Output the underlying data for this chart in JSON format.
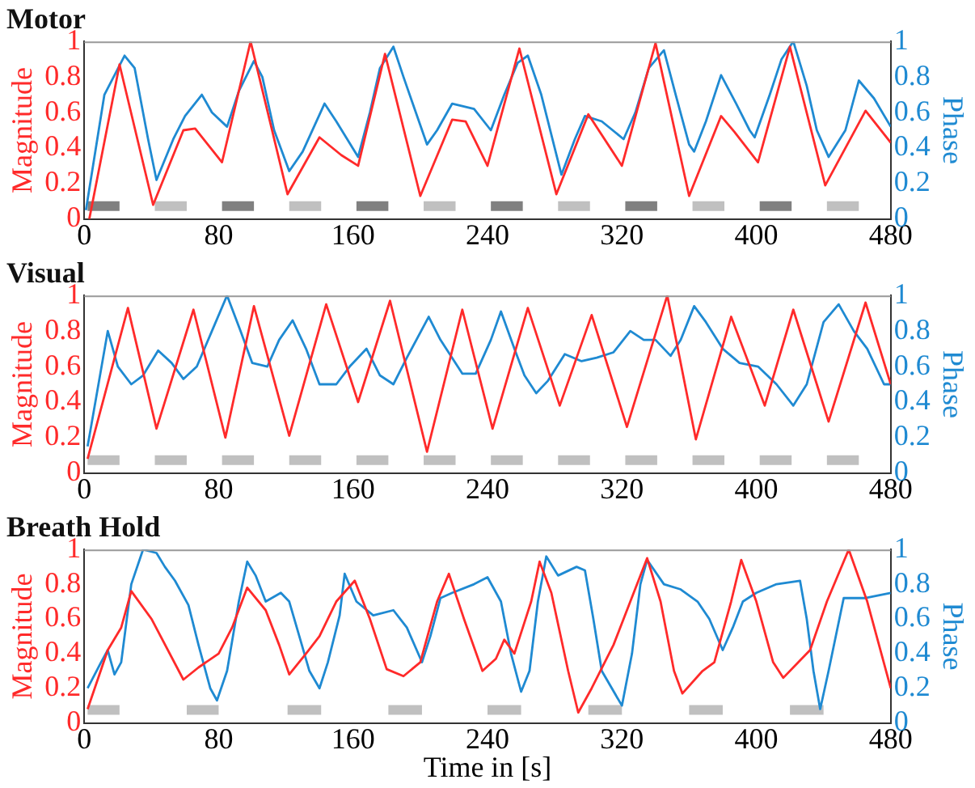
{
  "chart_data": [
    {
      "type": "line",
      "title": "Motor",
      "ylabel": "Magnitude",
      "y2label": "Phase",
      "xlim": [
        0,
        480
      ],
      "xticks": [
        0,
        80,
        160,
        240,
        320,
        400,
        480
      ],
      "ylim": [
        0,
        1
      ],
      "yticks": [
        0,
        0.2,
        0.4,
        0.6,
        0.8,
        1
      ],
      "y2lim": [
        0,
        1
      ],
      "y2ticks": [
        0,
        0.2,
        0.4,
        0.6,
        0.8,
        1
      ],
      "grid": false,
      "legend": false,
      "marker": "none",
      "series": [
        {
          "name": null,
          "color": "#ff2a2a",
          "x": [
            3,
            21,
            41,
            59,
            66,
            82,
            99,
            121,
            140,
            153,
            163,
            179,
            200,
            219,
            227,
            240,
            259,
            281,
            300,
            320,
            340,
            360,
            379,
            387,
            401,
            420,
            441,
            465,
            480
          ],
          "values": [
            0,
            0.87,
            0.08,
            0.5,
            0.51,
            0.32,
            1.0,
            0.14,
            0.46,
            0.36,
            0.3,
            0.93,
            0.13,
            0.56,
            0.55,
            0.3,
            0.96,
            0.14,
            0.59,
            0.3,
            0.99,
            0.13,
            0.58,
            0.49,
            0.32,
            0.97,
            0.19,
            0.61,
            0.43
          ]
        },
        {
          "name": null,
          "color": "#1f8ad2",
          "axis": "y2",
          "x": [
            1,
            12,
            24,
            30,
            38,
            43,
            53,
            60,
            70,
            76,
            85,
            92,
            101,
            106,
            113,
            122,
            130,
            143,
            150,
            163,
            170,
            176,
            184,
            190,
            204,
            210,
            219,
            232,
            242,
            250,
            258,
            264,
            272,
            284,
            292,
            298,
            308,
            321,
            328,
            336,
            345,
            352,
            360,
            363,
            370,
            379,
            388,
            396,
            399,
            408,
            415,
            422,
            430,
            436,
            443,
            453,
            461,
            470,
            480
          ],
          "values": [
            0.05,
            0.7,
            0.92,
            0.85,
            0.45,
            0.22,
            0.45,
            0.58,
            0.7,
            0.6,
            0.52,
            0.72,
            0.89,
            0.8,
            0.5,
            0.27,
            0.38,
            0.65,
            0.55,
            0.35,
            0.6,
            0.85,
            0.97,
            0.8,
            0.42,
            0.5,
            0.65,
            0.62,
            0.5,
            0.7,
            0.88,
            0.92,
            0.7,
            0.25,
            0.45,
            0.58,
            0.55,
            0.45,
            0.6,
            0.85,
            0.95,
            0.7,
            0.42,
            0.38,
            0.55,
            0.81,
            0.65,
            0.5,
            0.46,
            0.7,
            0.9,
            1.0,
            0.75,
            0.5,
            0.35,
            0.5,
            0.78,
            0.68,
            0.52
          ]
        }
      ],
      "bands": [
        {
          "axis": "x",
          "from": 2,
          "to": 21,
          "color": "#808080"
        },
        {
          "axis": "x",
          "from": 42,
          "to": 61,
          "color": "#c0c0c0"
        },
        {
          "axis": "x",
          "from": 82,
          "to": 101,
          "color": "#808080"
        },
        {
          "axis": "x",
          "from": 122,
          "to": 141,
          "color": "#c0c0c0"
        },
        {
          "axis": "x",
          "from": 162,
          "to": 181,
          "color": "#808080"
        },
        {
          "axis": "x",
          "from": 202,
          "to": 221,
          "color": "#c0c0c0"
        },
        {
          "axis": "x",
          "from": 242,
          "to": 261,
          "color": "#808080"
        },
        {
          "axis": "x",
          "from": 282,
          "to": 301,
          "color": "#c0c0c0"
        },
        {
          "axis": "x",
          "from": 322,
          "to": 341,
          "color": "#808080"
        },
        {
          "axis": "x",
          "from": 362,
          "to": 381,
          "color": "#c0c0c0"
        },
        {
          "axis": "x",
          "from": 402,
          "to": 421,
          "color": "#808080"
        },
        {
          "axis": "x",
          "from": 442,
          "to": 461,
          "color": "#c0c0c0"
        }
      ]
    },
    {
      "type": "line",
      "title": "Visual",
      "ylabel": "Magnitude",
      "y2label": "Phase",
      "xlim": [
        0,
        480
      ],
      "xticks": [
        0,
        80,
        160,
        240,
        320,
        400,
        480
      ],
      "ylim": [
        0,
        1
      ],
      "yticks": [
        0,
        0.2,
        0.4,
        0.6,
        0.8,
        1
      ],
      "y2lim": [
        0,
        1
      ],
      "y2ticks": [
        0,
        0.2,
        0.4,
        0.6,
        0.8,
        1
      ],
      "grid": false,
      "legend": false,
      "marker": "none",
      "series": [
        {
          "name": null,
          "color": "#ff2a2a",
          "x": [
            2,
            26,
            43,
            65,
            84,
            101,
            122,
            144,
            163,
            182,
            204,
            225,
            243,
            264,
            283,
            302,
            323,
            347,
            364,
            385,
            405,
            422,
            443,
            465,
            480
          ],
          "values": [
            0.08,
            0.93,
            0.25,
            0.92,
            0.2,
            0.94,
            0.21,
            0.95,
            0.4,
            0.97,
            0.12,
            0.92,
            0.25,
            0.93,
            0.38,
            0.89,
            0.26,
            1.0,
            0.19,
            0.88,
            0.38,
            0.92,
            0.29,
            0.96,
            0.5
          ]
        },
        {
          "name": null,
          "color": "#1f8ad2",
          "axis": "y2",
          "x": [
            2,
            14,
            20,
            28,
            35,
            44,
            52,
            59,
            67,
            76,
            85,
            93,
            100,
            109,
            116,
            124,
            132,
            140,
            150,
            158,
            168,
            176,
            184,
            192,
            205,
            212,
            225,
            233,
            242,
            248,
            256,
            262,
            269,
            276,
            286,
            296,
            305,
            315,
            325,
            333,
            340,
            349,
            355,
            363,
            370,
            380,
            390,
            401,
            412,
            422,
            430,
            440,
            449,
            458,
            466,
            476,
            480
          ],
          "values": [
            0.15,
            0.8,
            0.6,
            0.5,
            0.55,
            0.69,
            0.62,
            0.53,
            0.6,
            0.8,
            1.0,
            0.8,
            0.62,
            0.6,
            0.75,
            0.86,
            0.7,
            0.5,
            0.5,
            0.6,
            0.7,
            0.55,
            0.5,
            0.65,
            0.88,
            0.75,
            0.56,
            0.56,
            0.75,
            0.91,
            0.7,
            0.55,
            0.45,
            0.52,
            0.67,
            0.63,
            0.65,
            0.68,
            0.8,
            0.75,
            0.75,
            0.66,
            0.75,
            0.94,
            0.85,
            0.7,
            0.62,
            0.6,
            0.5,
            0.38,
            0.5,
            0.85,
            0.95,
            0.8,
            0.7,
            0.5,
            0.5
          ]
        }
      ],
      "bands": [
        {
          "axis": "x",
          "from": 2,
          "to": 21,
          "color": "#c0c0c0"
        },
        {
          "axis": "x",
          "from": 42,
          "to": 61,
          "color": "#c0c0c0"
        },
        {
          "axis": "x",
          "from": 82,
          "to": 101,
          "color": "#c0c0c0"
        },
        {
          "axis": "x",
          "from": 122,
          "to": 141,
          "color": "#c0c0c0"
        },
        {
          "axis": "x",
          "from": 162,
          "to": 181,
          "color": "#c0c0c0"
        },
        {
          "axis": "x",
          "from": 202,
          "to": 221,
          "color": "#c0c0c0"
        },
        {
          "axis": "x",
          "from": 242,
          "to": 261,
          "color": "#c0c0c0"
        },
        {
          "axis": "x",
          "from": 282,
          "to": 301,
          "color": "#c0c0c0"
        },
        {
          "axis": "x",
          "from": 322,
          "to": 341,
          "color": "#c0c0c0"
        },
        {
          "axis": "x",
          "from": 362,
          "to": 381,
          "color": "#c0c0c0"
        },
        {
          "axis": "x",
          "from": 402,
          "to": 421,
          "color": "#c0c0c0"
        },
        {
          "axis": "x",
          "from": 442,
          "to": 461,
          "color": "#c0c0c0"
        }
      ]
    },
    {
      "type": "line",
      "title": "Breath Hold",
      "xlabel": "Time in [s]",
      "ylabel": "Magnitude",
      "y2label": "Phase",
      "xlim": [
        0,
        480
      ],
      "xticks": [
        0,
        80,
        160,
        240,
        320,
        400,
        480
      ],
      "ylim": [
        0,
        1
      ],
      "yticks": [
        0,
        0.2,
        0.4,
        0.6,
        0.8,
        1
      ],
      "y2lim": [
        0,
        1
      ],
      "y2ticks": [
        0,
        0.2,
        0.4,
        0.6,
        0.8,
        1
      ],
      "grid": false,
      "legend": false,
      "marker": "none",
      "series": [
        {
          "name": null,
          "color": "#ff2a2a",
          "x": [
            2,
            14,
            22,
            28,
            40,
            59,
            68,
            80,
            88,
            97,
            108,
            116,
            122,
            132,
            140,
            150,
            161,
            170,
            180,
            190,
            200,
            210,
            217,
            226,
            237,
            245,
            250,
            256,
            266,
            271,
            278,
            288,
            294,
            302,
            315,
            325,
            335,
            343,
            351,
            356,
            368,
            375,
            385,
            391,
            400,
            410,
            416,
            425,
            432,
            442,
            455,
            466,
            480
          ],
          "values": [
            0.08,
            0.42,
            0.55,
            0.76,
            0.6,
            0.25,
            0.32,
            0.4,
            0.55,
            0.78,
            0.65,
            0.45,
            0.28,
            0.4,
            0.5,
            0.7,
            0.82,
            0.6,
            0.31,
            0.27,
            0.35,
            0.7,
            0.86,
            0.6,
            0.3,
            0.37,
            0.48,
            0.4,
            0.7,
            0.93,
            0.75,
            0.3,
            0.06,
            0.2,
            0.45,
            0.7,
            0.95,
            0.7,
            0.3,
            0.17,
            0.3,
            0.35,
            0.7,
            0.94,
            0.7,
            0.35,
            0.26,
            0.35,
            0.42,
            0.7,
            1.0,
            0.7,
            0.2
          ]
        },
        {
          "name": null,
          "color": "#1f8ad2",
          "axis": "y2",
          "x": [
            2,
            10,
            14,
            18,
            22,
            28,
            35,
            43,
            48,
            54,
            62,
            68,
            75,
            79,
            85,
            92,
            97,
            102,
            108,
            117,
            122,
            128,
            134,
            140,
            145,
            152,
            155,
            162,
            172,
            184,
            192,
            201,
            206,
            212,
            219,
            232,
            240,
            248,
            254,
            260,
            265,
            270,
            275,
            282,
            293,
            298,
            303,
            308,
            320,
            326,
            331,
            335,
            345,
            355,
            365,
            372,
            380,
            386,
            392,
            400,
            412,
            426,
            430,
            434,
            438,
            443,
            452,
            465,
            480
          ],
          "values": [
            0.2,
            0.35,
            0.42,
            0.28,
            0.35,
            0.8,
            1.0,
            0.98,
            0.9,
            0.82,
            0.68,
            0.45,
            0.2,
            0.13,
            0.3,
            0.7,
            0.93,
            0.85,
            0.7,
            0.75,
            0.7,
            0.5,
            0.3,
            0.2,
            0.35,
            0.62,
            0.86,
            0.7,
            0.62,
            0.65,
            0.55,
            0.35,
            0.5,
            0.72,
            0.75,
            0.8,
            0.84,
            0.7,
            0.4,
            0.18,
            0.3,
            0.7,
            0.96,
            0.85,
            0.9,
            0.88,
            0.6,
            0.3,
            0.1,
            0.4,
            0.8,
            0.94,
            0.8,
            0.77,
            0.7,
            0.6,
            0.42,
            0.55,
            0.7,
            0.75,
            0.8,
            0.82,
            0.6,
            0.3,
            0.08,
            0.3,
            0.72,
            0.72,
            0.75
          ]
        }
      ],
      "bands": [
        {
          "axis": "x",
          "from": 2,
          "to": 21,
          "color": "#c0c0c0"
        },
        {
          "axis": "x",
          "from": 61,
          "to": 80,
          "color": "#c0c0c0"
        },
        {
          "axis": "x",
          "from": 121,
          "to": 141,
          "color": "#c0c0c0"
        },
        {
          "axis": "x",
          "from": 181,
          "to": 201,
          "color": "#c0c0c0"
        },
        {
          "axis": "x",
          "from": 240,
          "to": 260,
          "color": "#c0c0c0"
        },
        {
          "axis": "x",
          "from": 300,
          "to": 320,
          "color": "#c0c0c0"
        },
        {
          "axis": "x",
          "from": 360,
          "to": 380,
          "color": "#c0c0c0"
        },
        {
          "axis": "x",
          "from": 420,
          "to": 440,
          "color": "#c0c0c0"
        }
      ]
    }
  ]
}
